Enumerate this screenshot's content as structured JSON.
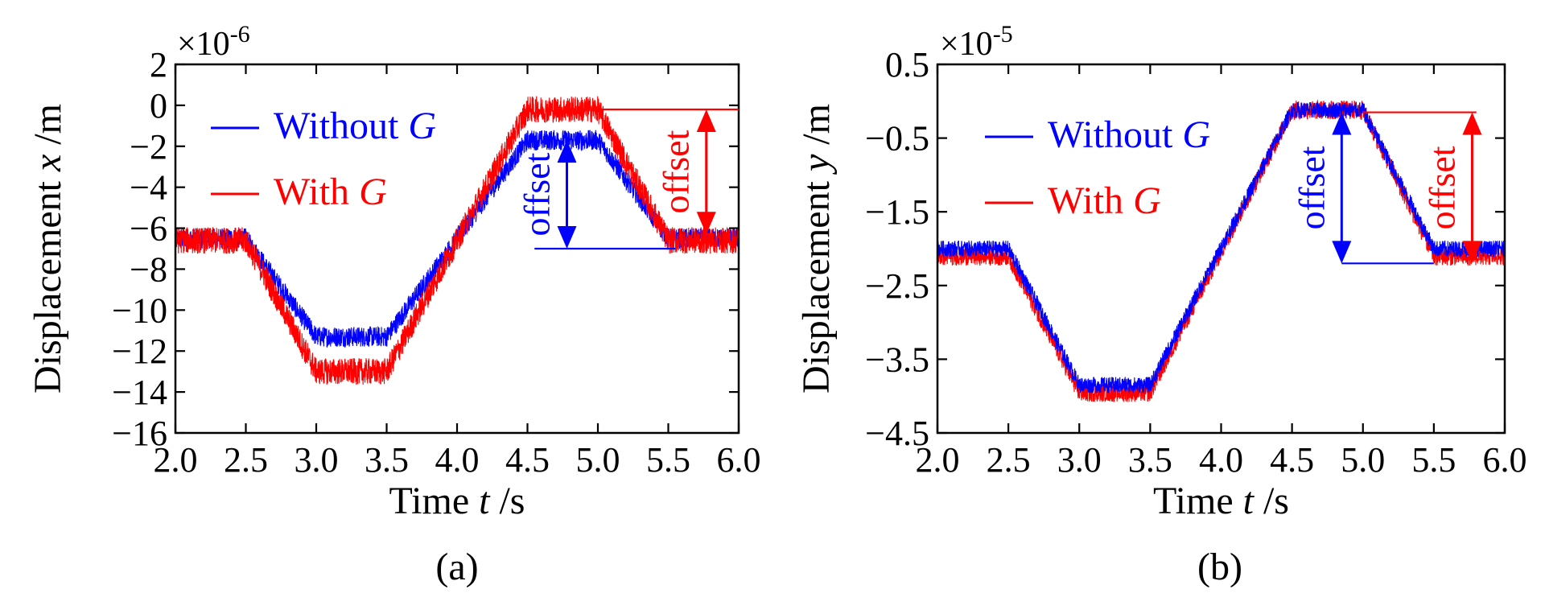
{
  "colors": {
    "without_g": "#0000ff",
    "with_g": "#ff0000",
    "axis": "#000000"
  },
  "chart_data": [
    {
      "type": "line",
      "panel_label": "(a)",
      "exponent_label": "×10",
      "exponent_power": "-6",
      "xlabel": {
        "prefix": "Time ",
        "var": "t",
        "unit": " /s"
      },
      "ylabel": {
        "prefix": "Displacement ",
        "var": "x",
        "unit": " /m"
      },
      "xlim": [
        2.0,
        6.0
      ],
      "ylim": [
        -16,
        2
      ],
      "x_ticks": [
        2.0,
        2.5,
        3.0,
        3.5,
        4.0,
        4.5,
        5.0,
        5.5,
        6.0
      ],
      "x_tick_labels": [
        "2.0",
        "2.5",
        "3.0",
        "3.5",
        "4.0",
        "4.5",
        "5.0",
        "5.5",
        "6.0"
      ],
      "y_ticks": [
        2,
        0,
        -2,
        -4,
        -6,
        -8,
        -10,
        -12,
        -14,
        -16
      ],
      "y_tick_labels": [
        "2",
        "0",
        "−2",
        "−4",
        "−6",
        "−8",
        "−10",
        "−12",
        "−14",
        "−16"
      ],
      "legend_position": "top-left",
      "series": [
        {
          "name": "Without G",
          "label": "Without ",
          "label_var": "G",
          "color_key": "without_g",
          "x": [
            2.0,
            2.5,
            3.0,
            3.5,
            4.5,
            5.0,
            5.5,
            6.0
          ],
          "values": [
            -6.5,
            -6.5,
            -11.3,
            -11.3,
            -1.7,
            -1.7,
            -6.5,
            -6.5
          ],
          "noise": 0.5
        },
        {
          "name": "With G",
          "label": "With ",
          "label_var": "G",
          "color_key": "with_g",
          "x": [
            2.0,
            2.5,
            3.0,
            3.5,
            4.5,
            5.0,
            5.5,
            6.0
          ],
          "values": [
            -6.6,
            -6.6,
            -13.0,
            -13.0,
            -0.2,
            -0.2,
            -6.6,
            -6.6
          ],
          "noise": 0.65
        }
      ],
      "annotations": [
        {
          "text": "offset",
          "color_key": "without_g",
          "from_y": -1.7,
          "to_y": -7.0,
          "x": 4.78,
          "line_from_x": 4.55,
          "line_to_x": 5.55,
          "ref_line_at": "bottom",
          "text_side": "left"
        },
        {
          "text": "offset",
          "color_key": "with_g",
          "from_y": -0.2,
          "to_y": -6.3,
          "x": 5.77,
          "line_from_x": 5.0,
          "line_to_x": 6.0,
          "ref_line_at": "top",
          "text_side": "left"
        }
      ]
    },
    {
      "type": "line",
      "panel_label": "(b)",
      "exponent_label": "×10",
      "exponent_power": "-5",
      "xlabel": {
        "prefix": "Time ",
        "var": "t",
        "unit": " /s"
      },
      "ylabel": {
        "prefix": "Displacement ",
        "var": "y",
        "unit": " /m"
      },
      "xlim": [
        2.0,
        6.0
      ],
      "ylim": [
        -4.5,
        0.5
      ],
      "x_ticks": [
        2.0,
        2.5,
        3.0,
        3.5,
        4.0,
        4.5,
        5.0,
        5.5,
        6.0
      ],
      "x_tick_labels": [
        "2.0",
        "2.5",
        "3.0",
        "3.5",
        "4.0",
        "4.5",
        "5.0",
        "5.5",
        "6.0"
      ],
      "y_ticks": [
        0.5,
        -0.5,
        -1.5,
        -2.5,
        -3.5,
        -4.5
      ],
      "y_tick_labels": [
        "0.5",
        "−0.5",
        "−1.5",
        "−2.5",
        "−3.5",
        "−4.5"
      ],
      "legend_position": "top-left",
      "series": [
        {
          "name": "With G",
          "label": "With ",
          "label_var": "G",
          "color_key": "with_g",
          "x": [
            2.0,
            2.5,
            3.0,
            3.5,
            4.5,
            5.0,
            5.5,
            6.0
          ],
          "values": [
            -2.1,
            -2.1,
            -3.95,
            -3.95,
            -0.12,
            -0.12,
            -2.1,
            -2.1
          ],
          "noise": 0.13
        },
        {
          "name": "Without G",
          "label": "Without ",
          "label_var": "G",
          "color_key": "without_g",
          "x": [
            2.0,
            2.5,
            3.0,
            3.5,
            4.5,
            5.0,
            5.5,
            6.0
          ],
          "values": [
            -2.0,
            -2.0,
            -3.85,
            -3.85,
            -0.12,
            -0.12,
            -2.0,
            -2.0
          ],
          "noise": 0.11
        }
      ],
      "annotations": [
        {
          "text": "offset",
          "color_key": "without_g",
          "from_y": -0.15,
          "to_y": -2.2,
          "x": 4.85,
          "line_from_x": 4.85,
          "line_to_x": 5.5,
          "ref_line_at": "bottom",
          "text_side": "left"
        },
        {
          "text": "offset",
          "color_key": "with_g",
          "from_y": -0.15,
          "to_y": -2.2,
          "x": 5.77,
          "line_from_x": 5.0,
          "line_to_x": 5.8,
          "ref_line_at": "top",
          "text_side": "left"
        }
      ]
    }
  ]
}
